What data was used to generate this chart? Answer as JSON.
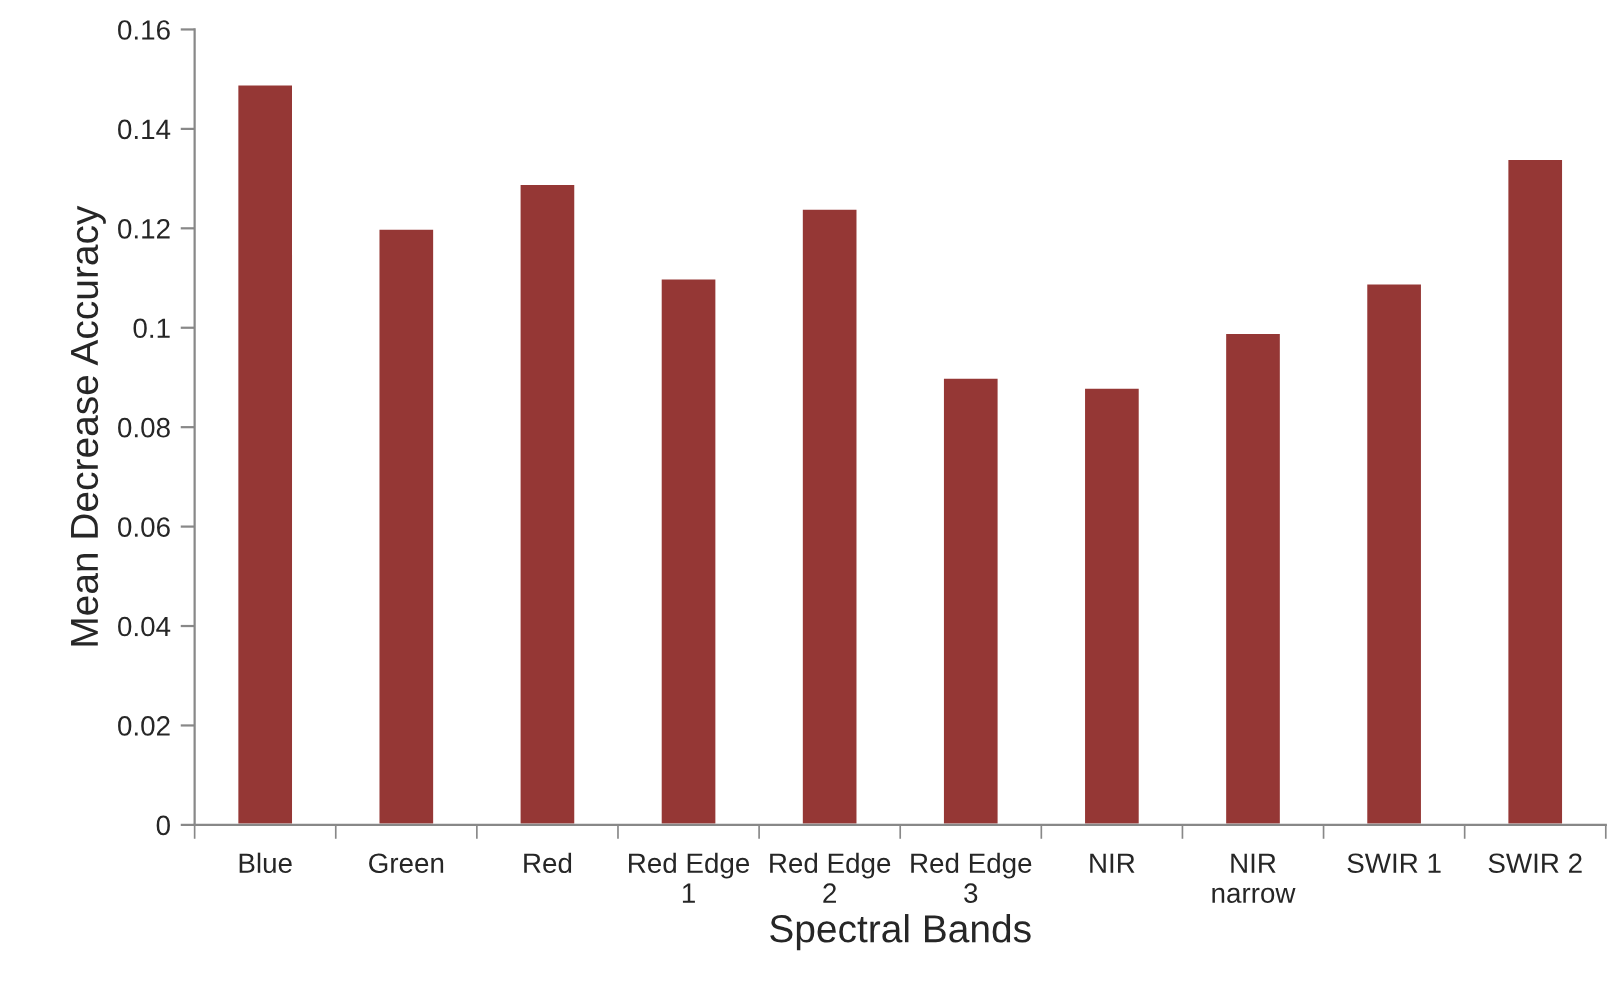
{
  "chart_data": {
    "type": "bar",
    "xlabel": "Spectral Bands",
    "ylabel": "Mean Decrease Accuracy",
    "categories": [
      "Blue",
      "Green",
      "Red",
      "Red Edge\n1",
      "Red Edge\n2",
      "Red Edge\n3",
      "NIR",
      "NIR\nnarrow",
      "SWIR 1",
      "SWIR 2"
    ],
    "values": [
      0.149,
      0.12,
      0.129,
      0.11,
      0.124,
      0.09,
      0.088,
      0.099,
      0.109,
      0.134
    ],
    "color": "#953735",
    "ylim": [
      0,
      0.16
    ],
    "yticks": [
      {
        "value": 0,
        "label": "0"
      },
      {
        "value": 0.02,
        "label": "0.02"
      },
      {
        "value": 0.04,
        "label": "0.04"
      },
      {
        "value": 0.06,
        "label": "0.06"
      },
      {
        "value": 0.08,
        "label": "0.08"
      },
      {
        "value": 0.1,
        "label": "0.1"
      },
      {
        "value": 0.12,
        "label": "0.12"
      },
      {
        "value": 0.14,
        "label": "0.14"
      },
      {
        "value": 0.16,
        "label": "0.16"
      }
    ],
    "grid": false
  }
}
